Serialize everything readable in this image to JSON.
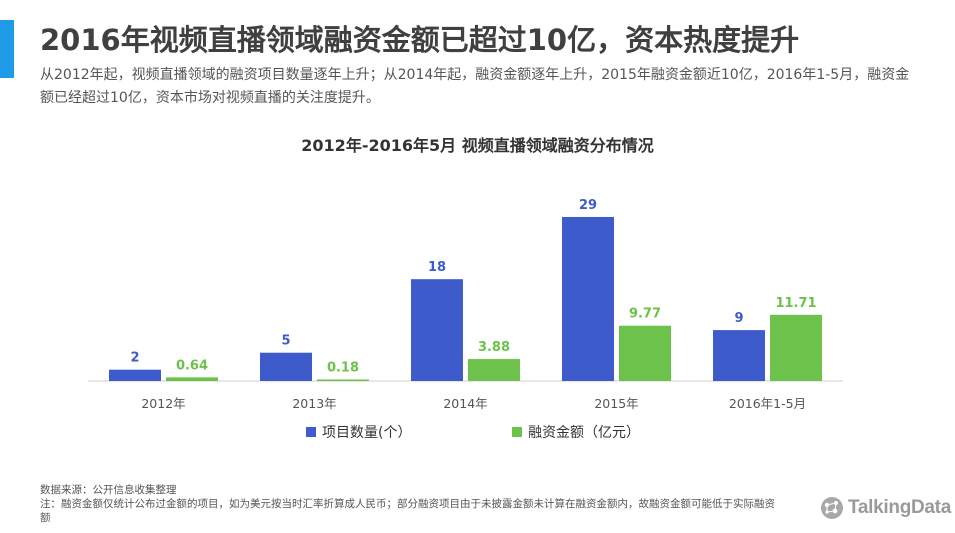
{
  "header": {
    "title": "2016年视频直播领域融资金额已超过10亿，资本热度提升",
    "subtitle": "从2012年起，视频直播领域的融资项目数量逐年上升；从2014年起，融资金额逐年上升，2015年融资金额近10亿，2016年1-5月，融资金额已经超过10亿，资本市场对视频直播的关注度提升。"
  },
  "chart_data": {
    "type": "bar",
    "title": "2012年-2016年5月 视频直播领域融资分布情况",
    "categories": [
      "2012年",
      "2013年",
      "2014年",
      "2015年",
      "2016年1-5月"
    ],
    "series": [
      {
        "name": "项目数量(个）",
        "values": [
          2,
          5,
          18,
          29,
          9
        ],
        "labels": [
          "2",
          "5",
          "18",
          "29",
          "9"
        ],
        "color": "#3e5bcc"
      },
      {
        "name": "融资金额（亿元）",
        "values": [
          0.64,
          0.18,
          3.88,
          9.77,
          11.71
        ],
        "labels": [
          "0.64",
          "0.18",
          "3.88",
          "9.77",
          "11.71"
        ],
        "color": "#6cc24a"
      }
    ],
    "ylim": [
      0,
      32
    ],
    "grid": false,
    "legend": "bottom"
  },
  "footer": {
    "source": "数据来源：公开信息收集整理",
    "note": "注：融资金额仅统计公布过金额的项目，如为美元按当时汇率折算成人民币；部分融资项目由于未披露金额未计算在融资金额内，故融资金额可能低于实际融资额"
  },
  "logo": {
    "text": "TalkingData",
    "icon": "talkingdata-logo-icon",
    "color": "#9a9a9a"
  },
  "colors": {
    "accent": "#1e9ae6"
  }
}
